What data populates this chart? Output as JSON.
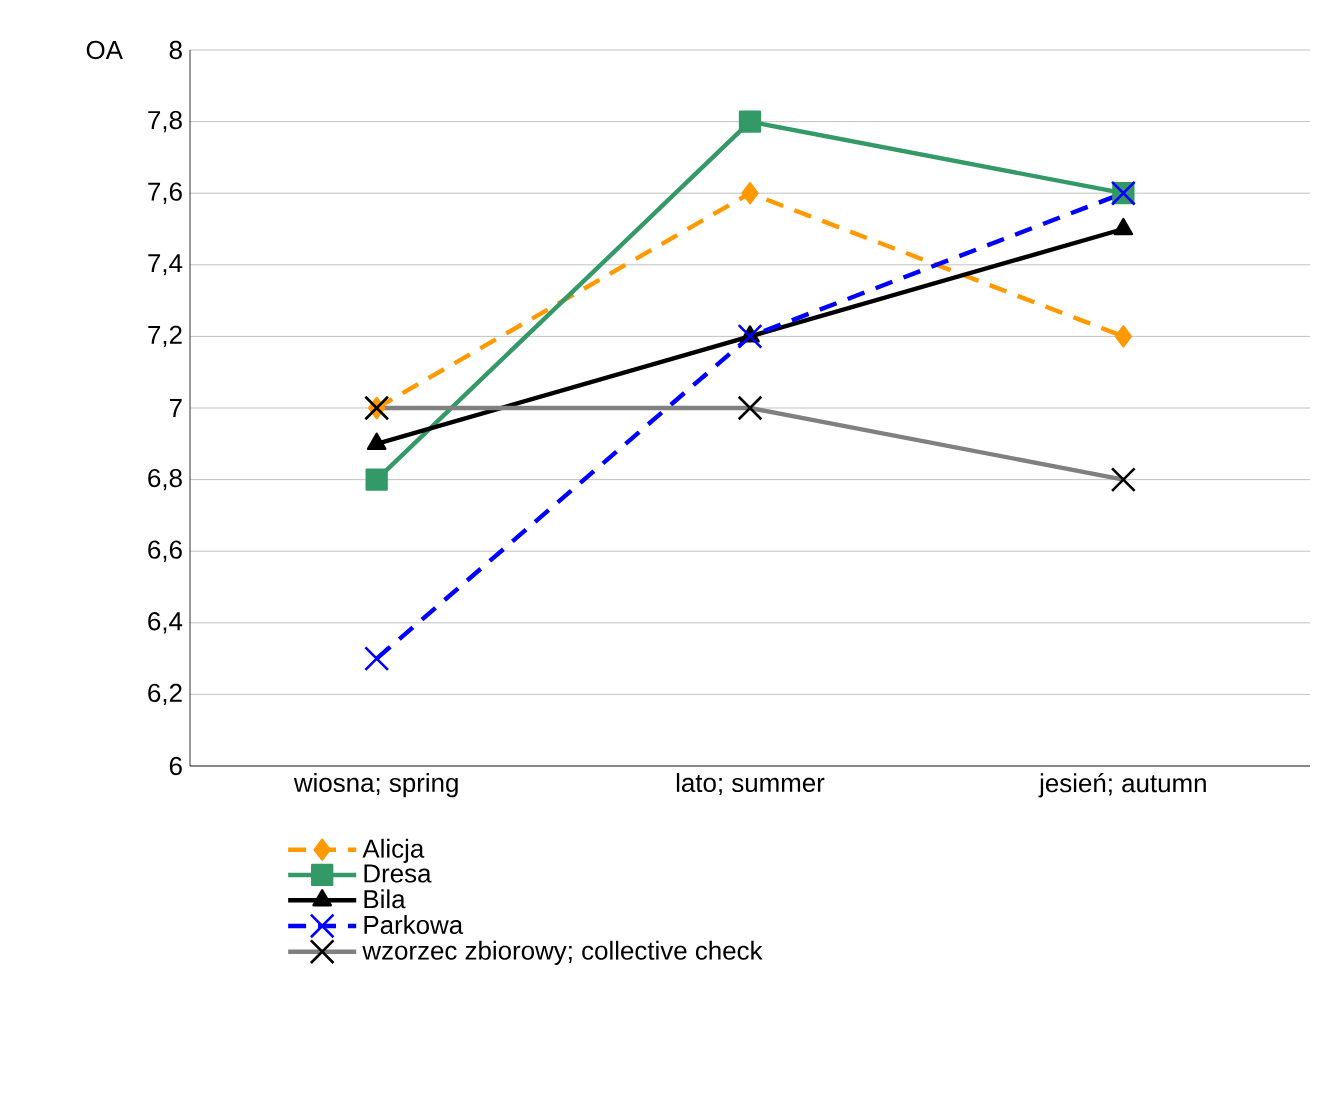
{
  "chart_data": {
    "type": "line",
    "ylabel": "OA",
    "categories": [
      "wiosna; spring",
      "lato; summer",
      "jesień; autumn"
    ],
    "ylim": [
      6,
      8
    ],
    "yticks": [
      6,
      {
        "value": 6.2,
        "label": "6,2"
      },
      {
        "value": 6.4,
        "label": "6,4"
      },
      {
        "value": 6.6,
        "label": "6,6"
      },
      {
        "value": 6.8,
        "label": "6,8"
      },
      7,
      {
        "value": 7.2,
        "label": "7,2"
      },
      {
        "value": 7.4,
        "label": "7,4"
      },
      {
        "value": 7.6,
        "label": "7,6"
      },
      {
        "value": 7.8,
        "label": "7,8"
      },
      8
    ],
    "grid": "y",
    "legend": "bottom",
    "series": [
      {
        "name": "Alicja",
        "color": "#ff9900",
        "marker": "diamond",
        "line_style": "dashed",
        "values": [
          7.0,
          7.6,
          7.2
        ]
      },
      {
        "name": "Dresa",
        "color": "#339966",
        "marker": "square",
        "line_style": "solid",
        "values": [
          6.8,
          7.8,
          7.6
        ]
      },
      {
        "name": "Bila",
        "color": "#000000",
        "marker": "triangle",
        "line_style": "solid",
        "values": [
          6.9,
          7.2,
          7.5
        ]
      },
      {
        "name": "Parkowa",
        "color": "#0000ff",
        "marker": "cross",
        "line_style": "dashed",
        "values": [
          6.3,
          7.2,
          7.6
        ]
      },
      {
        "name": "wzorzec  zbiorowy; collective check",
        "color": "#808080",
        "marker": "cross",
        "line_style": "solid",
        "values": [
          7.0,
          7.0,
          6.8
        ]
      }
    ]
  }
}
